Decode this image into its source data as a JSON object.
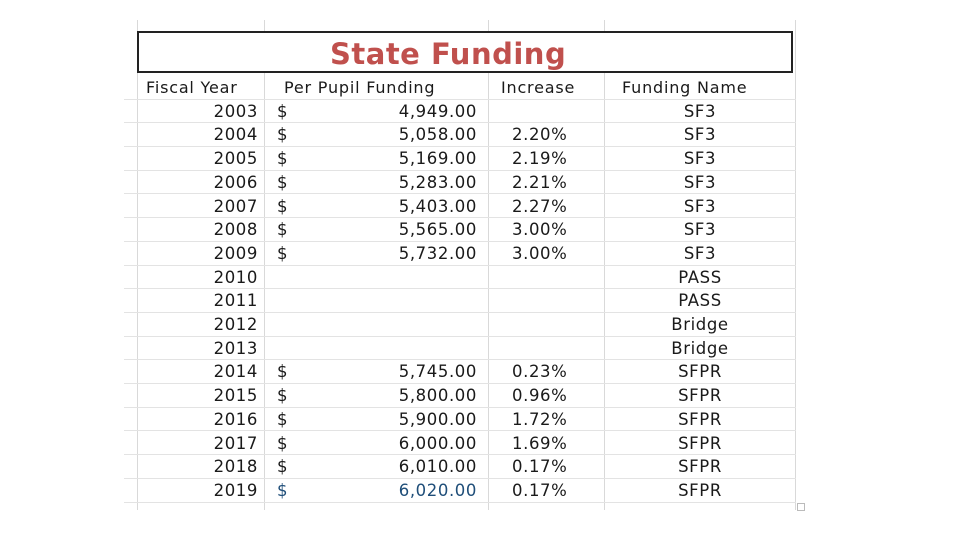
{
  "title": "State Funding",
  "headers": {
    "fiscal_year": "Fiscal Year",
    "per_pupil": "Per Pupil Funding",
    "increase": "Increase",
    "funding_name": "Funding Name"
  },
  "rows": [
    {
      "year": "2003",
      "dollar": "$",
      "amount": "4,949.00",
      "increase": "",
      "name": "SF3"
    },
    {
      "year": "2004",
      "dollar": "$",
      "amount": "5,058.00",
      "increase": "2.20%",
      "name": "SF3"
    },
    {
      "year": "2005",
      "dollar": "$",
      "amount": "5,169.00",
      "increase": "2.19%",
      "name": "SF3"
    },
    {
      "year": "2006",
      "dollar": "$",
      "amount": "5,283.00",
      "increase": "2.21%",
      "name": "SF3"
    },
    {
      "year": "2007",
      "dollar": "$",
      "amount": "5,403.00",
      "increase": "2.27%",
      "name": "SF3"
    },
    {
      "year": "2008",
      "dollar": "$",
      "amount": "5,565.00",
      "increase": "3.00%",
      "name": "SF3"
    },
    {
      "year": "2009",
      "dollar": "$",
      "amount": "5,732.00",
      "increase": "3.00%",
      "name": "SF3"
    },
    {
      "year": "2010",
      "dollar": "",
      "amount": "",
      "increase": "",
      "name": "PASS"
    },
    {
      "year": "2011",
      "dollar": "",
      "amount": "",
      "increase": "",
      "name": "PASS"
    },
    {
      "year": "2012",
      "dollar": "",
      "amount": "",
      "increase": "",
      "name": "Bridge"
    },
    {
      "year": "2013",
      "dollar": "",
      "amount": "",
      "increase": "",
      "name": "Bridge"
    },
    {
      "year": "2014",
      "dollar": "$",
      "amount": "5,745.00",
      "increase": "0.23%",
      "name": "SFPR"
    },
    {
      "year": "2015",
      "dollar": "$",
      "amount": "5,800.00",
      "increase": "0.96%",
      "name": "SFPR"
    },
    {
      "year": "2016",
      "dollar": "$",
      "amount": "5,900.00",
      "increase": "1.72%",
      "name": "SFPR"
    },
    {
      "year": "2017",
      "dollar": "$",
      "amount": "6,000.00",
      "increase": "1.69%",
      "name": "SFPR"
    },
    {
      "year": "2018",
      "dollar": "$",
      "amount": "6,010.00",
      "increase": "0.17%",
      "name": "SFPR"
    },
    {
      "year": "2019",
      "dollar": "$",
      "amount": "6,020.00",
      "increase": "0.17%",
      "name": "SFPR"
    }
  ],
  "colors": {
    "title": "#c0504d",
    "highlight_amount": "#1f4e79"
  }
}
